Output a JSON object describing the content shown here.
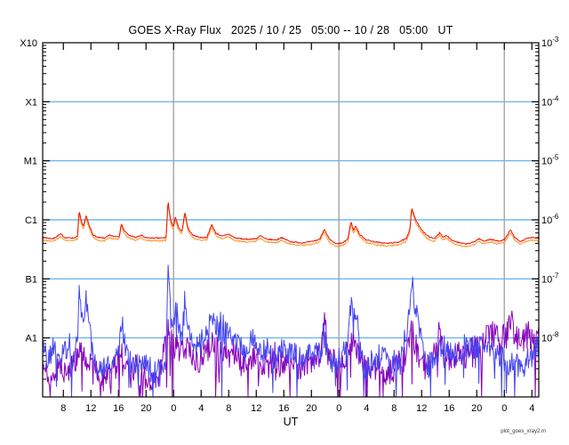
{
  "chart_data": {
    "type": "line",
    "title": "GOES X-Ray Flux   2025 / 10 / 25   05:00 -- 10 / 28   05:00   UT",
    "xlabel": "UT",
    "footer_note": "plot_goes_xray2.m",
    "x_range_hours": [
      5,
      77
    ],
    "y_log_range": [
      -9,
      -3
    ],
    "grid": "horizontal decade lines, cyan",
    "legend": "none",
    "grid_exponents": [
      -4,
      -5,
      -6,
      -7,
      -8
    ],
    "day_boundaries_hours": [
      24,
      48,
      72
    ],
    "x_ticks": [
      {
        "t": 8,
        "label": "8"
      },
      {
        "t": 12,
        "label": "12"
      },
      {
        "t": 16,
        "label": "16"
      },
      {
        "t": 20,
        "label": "20"
      },
      {
        "t": 24,
        "label": "0"
      },
      {
        "t": 28,
        "label": "4"
      },
      {
        "t": 32,
        "label": "8"
      },
      {
        "t": 36,
        "label": "12"
      },
      {
        "t": 40,
        "label": "16"
      },
      {
        "t": 44,
        "label": "20"
      },
      {
        "t": 48,
        "label": "0"
      },
      {
        "t": 52,
        "label": "4"
      },
      {
        "t": 56,
        "label": "8"
      },
      {
        "t": 60,
        "label": "12"
      },
      {
        "t": 64,
        "label": "16"
      },
      {
        "t": 68,
        "label": "20"
      },
      {
        "t": 72,
        "label": "0"
      },
      {
        "t": 76,
        "label": "4"
      }
    ],
    "y_left_labels": [
      {
        "exp": -3,
        "label": "X10"
      },
      {
        "exp": -4,
        "label": "X1"
      },
      {
        "exp": -5,
        "label": "M1"
      },
      {
        "exp": -6,
        "label": "C1"
      },
      {
        "exp": -7,
        "label": "B1"
      },
      {
        "exp": -8,
        "label": "A1"
      }
    ],
    "y_right_exponents": [
      "-3",
      "-4",
      "-5",
      "-6",
      "-7",
      "-8"
    ],
    "colors": {
      "long_primary": "#ee1100",
      "long_secondary": "#ff9933",
      "short_primary": "#4444ef",
      "short_secondary": "#8800bb",
      "grid_line": "#55aaee",
      "day_line": "#a6a6a6",
      "frame": "#000000"
    },
    "series": [
      {
        "name": "short-secondary",
        "color": "#8800bb",
        "noise": {
          "seed": 1337,
          "step": 0.1,
          "amp": 0.24,
          "dip_prob": 0.07,
          "dip_depth": 1.1,
          "spike_prob": 0.015,
          "spike_height": 0.25
        },
        "points": [
          [
            5,
            -8.5
          ],
          [
            6,
            -8.65
          ],
          [
            7,
            -8.5
          ],
          [
            8,
            -8.6
          ],
          [
            9,
            -8.55
          ],
          [
            10.3,
            -8.2
          ],
          [
            11.3,
            -8.4
          ],
          [
            12.5,
            -8.6
          ],
          [
            13.5,
            -8.7
          ],
          [
            15,
            -8.6
          ],
          [
            16.45,
            -8.25
          ],
          [
            17.5,
            -8.6
          ],
          [
            19,
            -8.65
          ],
          [
            20.5,
            -8.7
          ],
          [
            22,
            -8.6
          ],
          [
            23.2,
            -7.9
          ],
          [
            24.25,
            -8.2
          ],
          [
            25.65,
            -8.1
          ],
          [
            27,
            -8.4
          ],
          [
            28.5,
            -8.3
          ],
          [
            29.55,
            -8.1
          ],
          [
            31,
            -8.3
          ],
          [
            32.5,
            -8.25
          ],
          [
            33.5,
            -8.3
          ],
          [
            34.5,
            -8.4
          ],
          [
            35.5,
            -8.3
          ],
          [
            36.5,
            -8.45
          ],
          [
            38,
            -8.35
          ],
          [
            39.5,
            -8.45
          ],
          [
            41,
            -8.4
          ],
          [
            42.5,
            -8.5
          ],
          [
            44,
            -8.45
          ],
          [
            45.4,
            -8.2
          ],
          [
            45.85,
            -7.63
          ],
          [
            46.4,
            -8.1
          ],
          [
            47.5,
            -8.5
          ],
          [
            48.5,
            -8.45
          ],
          [
            49.75,
            -8.0
          ],
          [
            50.45,
            -8.1
          ],
          [
            51.5,
            -8.55
          ],
          [
            53,
            -8.5
          ],
          [
            54.5,
            -8.6
          ],
          [
            56,
            -8.5
          ],
          [
            57.5,
            -8.35
          ],
          [
            58.55,
            -7.9
          ],
          [
            59.5,
            -8.3
          ],
          [
            60.5,
            -8.5
          ],
          [
            61.5,
            -8.4
          ],
          [
            62.6,
            -7.85
          ],
          [
            63.3,
            -8.3
          ],
          [
            64.5,
            -8.35
          ],
          [
            65.5,
            -8.25
          ],
          [
            66.5,
            -8.3
          ],
          [
            67.5,
            -8.2
          ],
          [
            68.5,
            -8.1
          ],
          [
            69.5,
            -8.0
          ],
          [
            70.5,
            -7.95
          ],
          [
            71.5,
            -8.05
          ],
          [
            72.3,
            -7.95
          ],
          [
            72.95,
            -7.68
          ],
          [
            73.6,
            -8.0
          ],
          [
            74.5,
            -8.05
          ],
          [
            75.5,
            -7.95
          ],
          [
            76.3,
            -8.0
          ],
          [
            77,
            -7.9
          ]
        ]
      },
      {
        "name": "short-primary",
        "color": "#4444ef",
        "noise": {
          "seed": 42,
          "step": 0.1,
          "amp": 0.21,
          "dip_prob": 0.05,
          "dip_depth": 1.0,
          "spike_prob": 0.02,
          "spike_height": 0.3
        },
        "points": [
          [
            5,
            -8.1
          ],
          [
            5.8,
            -8.35
          ],
          [
            6.5,
            -8.15
          ],
          [
            7.5,
            -8.45
          ],
          [
            8.3,
            -8.2
          ],
          [
            9.2,
            -8.35
          ],
          [
            10.05,
            -8.1
          ],
          [
            10.3,
            -6.97
          ],
          [
            10.6,
            -7.6
          ],
          [
            10.9,
            -7.9
          ],
          [
            11.3,
            -7.3
          ],
          [
            11.8,
            -7.9
          ],
          [
            12.4,
            -8.3
          ],
          [
            13.2,
            -8.6
          ],
          [
            14,
            -8.45
          ],
          [
            15,
            -8.55
          ],
          [
            16,
            -8.3
          ],
          [
            16.45,
            -7.63
          ],
          [
            16.9,
            -8.1
          ],
          [
            17.6,
            -8.35
          ],
          [
            18.4,
            -8.5
          ],
          [
            19.4,
            -8.35
          ],
          [
            20.4,
            -8.5
          ],
          [
            21.4,
            -8.6
          ],
          [
            22.3,
            -8.5
          ],
          [
            22.9,
            -8.3
          ],
          [
            23.2,
            -6.78
          ],
          [
            23.6,
            -7.7
          ],
          [
            23.95,
            -7.9
          ],
          [
            24.25,
            -7.28
          ],
          [
            24.8,
            -7.9
          ],
          [
            25.2,
            -8.1
          ],
          [
            25.65,
            -7.33
          ],
          [
            26.2,
            -7.95
          ],
          [
            26.9,
            -8.2
          ],
          [
            27.8,
            -8.1
          ],
          [
            28.8,
            -7.95
          ],
          [
            29.55,
            -7.51
          ],
          [
            30.1,
            -7.9
          ],
          [
            30.8,
            -7.95
          ],
          [
            31.7,
            -7.93
          ],
          [
            32.5,
            -8.0
          ],
          [
            33.5,
            -8.15
          ],
          [
            34.6,
            -8.25
          ],
          [
            35.5,
            -7.95
          ],
          [
            36.3,
            -8.3
          ],
          [
            37.5,
            -8.2
          ],
          [
            38.5,
            -8.35
          ],
          [
            39.5,
            -8.2
          ],
          [
            40.5,
            -8.3
          ],
          [
            41.5,
            -8.25
          ],
          [
            42.5,
            -8.35
          ],
          [
            43.5,
            -8.3
          ],
          [
            44.5,
            -8.2
          ],
          [
            45.4,
            -8.3
          ],
          [
            45.85,
            -7.95
          ],
          [
            46.5,
            -8.35
          ],
          [
            47.5,
            -8.45
          ],
          [
            48.5,
            -8.3
          ],
          [
            49.3,
            -8.1
          ],
          [
            49.75,
            -7.42
          ],
          [
            50.1,
            -7.8
          ],
          [
            50.45,
            -7.46
          ],
          [
            51,
            -8.2
          ],
          [
            51.8,
            -8.6
          ],
          [
            52.8,
            -8.4
          ],
          [
            54,
            -8.3
          ],
          [
            55.5,
            -8.45
          ],
          [
            56.8,
            -8.35
          ],
          [
            57.8,
            -7.9
          ],
          [
            58.55,
            -7.06
          ],
          [
            59.2,
            -7.55
          ],
          [
            59.9,
            -8.0
          ],
          [
            60.8,
            -8.5
          ],
          [
            61.8,
            -8.35
          ],
          [
            62.6,
            -8.2
          ],
          [
            63.5,
            -8.15
          ],
          [
            64.5,
            -8.3
          ],
          [
            65.5,
            -8.2
          ],
          [
            66.5,
            -8.1
          ],
          [
            67.5,
            -8.2
          ],
          [
            68.5,
            -8.15
          ],
          [
            69.5,
            -8.05
          ],
          [
            70.5,
            -8.25
          ],
          [
            71.5,
            -8.3
          ],
          [
            72.5,
            -8.45
          ],
          [
            73.5,
            -8.4
          ],
          [
            74.5,
            -8.55
          ],
          [
            75.5,
            -8.35
          ],
          [
            76.3,
            -8.25
          ],
          [
            77,
            -8.1
          ]
        ]
      },
      {
        "name": "long-secondary",
        "color": "#ff9933",
        "ref": "long-primary",
        "offset": -0.045,
        "noise": {
          "seed": 9,
          "step": 0.08,
          "amp": 0.012
        }
      },
      {
        "name": "long-primary",
        "color": "#ee1100",
        "noise": {
          "seed": 7,
          "step": 0.08,
          "amp": 0.01
        },
        "points": [
          [
            5,
            -6.3
          ],
          [
            6.5,
            -6.32
          ],
          [
            7.6,
            -6.24
          ],
          [
            8.2,
            -6.3
          ],
          [
            9.5,
            -6.31
          ],
          [
            10.05,
            -6.28
          ],
          [
            10.3,
            -5.84
          ],
          [
            10.55,
            -6.0
          ],
          [
            10.9,
            -6.12
          ],
          [
            11.3,
            -5.92
          ],
          [
            11.7,
            -6.08
          ],
          [
            12.3,
            -6.25
          ],
          [
            13,
            -6.3
          ],
          [
            14,
            -6.31
          ],
          [
            14.7,
            -6.26
          ],
          [
            15.3,
            -6.28
          ],
          [
            16.1,
            -6.28
          ],
          [
            16.45,
            -6.06
          ],
          [
            16.8,
            -6.18
          ],
          [
            17.5,
            -6.26
          ],
          [
            18.5,
            -6.3
          ],
          [
            19.3,
            -6.26
          ],
          [
            19.8,
            -6.3
          ],
          [
            21,
            -6.31
          ],
          [
            22,
            -6.31
          ],
          [
            22.9,
            -6.3
          ],
          [
            23.2,
            -5.69
          ],
          [
            23.6,
            -6.02
          ],
          [
            23.95,
            -6.12
          ],
          [
            24.25,
            -5.95
          ],
          [
            24.7,
            -6.12
          ],
          [
            25.2,
            -6.2
          ],
          [
            25.65,
            -5.87
          ],
          [
            26.1,
            -6.15
          ],
          [
            26.8,
            -6.26
          ],
          [
            27.8,
            -6.3
          ],
          [
            28.8,
            -6.3
          ],
          [
            29.55,
            -6.08
          ],
          [
            30.1,
            -6.22
          ],
          [
            31,
            -6.28
          ],
          [
            31.9,
            -6.24
          ],
          [
            33,
            -6.31
          ],
          [
            34.5,
            -6.33
          ],
          [
            36,
            -6.32
          ],
          [
            36.6,
            -6.27
          ],
          [
            37.5,
            -6.33
          ],
          [
            39,
            -6.34
          ],
          [
            39.6,
            -6.3
          ],
          [
            41,
            -6.37
          ],
          [
            42.5,
            -6.39
          ],
          [
            44,
            -6.37
          ],
          [
            45.2,
            -6.33
          ],
          [
            45.85,
            -6.16
          ],
          [
            46.6,
            -6.33
          ],
          [
            47.6,
            -6.41
          ],
          [
            48.6,
            -6.39
          ],
          [
            49.3,
            -6.32
          ],
          [
            49.75,
            -6.02
          ],
          [
            50.1,
            -6.18
          ],
          [
            50.45,
            -6.1
          ],
          [
            51,
            -6.25
          ],
          [
            52,
            -6.34
          ],
          [
            53.5,
            -6.38
          ],
          [
            55,
            -6.4
          ],
          [
            56.5,
            -6.38
          ],
          [
            57.8,
            -6.32
          ],
          [
            58.3,
            -6.15
          ],
          [
            58.55,
            -5.79
          ],
          [
            59.1,
            -5.99
          ],
          [
            59.8,
            -6.14
          ],
          [
            60.8,
            -6.27
          ],
          [
            61.8,
            -6.32
          ],
          [
            62.6,
            -6.22
          ],
          [
            63.1,
            -6.3
          ],
          [
            63.6,
            -6.26
          ],
          [
            64.5,
            -6.35
          ],
          [
            65.5,
            -6.39
          ],
          [
            66.5,
            -6.41
          ],
          [
            67.5,
            -6.38
          ],
          [
            68.3,
            -6.32
          ],
          [
            69,
            -6.36
          ],
          [
            70,
            -6.33
          ],
          [
            71,
            -6.36
          ],
          [
            72,
            -6.34
          ],
          [
            72.9,
            -6.17
          ],
          [
            73.5,
            -6.3
          ],
          [
            74.3,
            -6.37
          ],
          [
            75.2,
            -6.32
          ],
          [
            76,
            -6.3
          ],
          [
            77,
            -6.31
          ]
        ]
      }
    ]
  }
}
